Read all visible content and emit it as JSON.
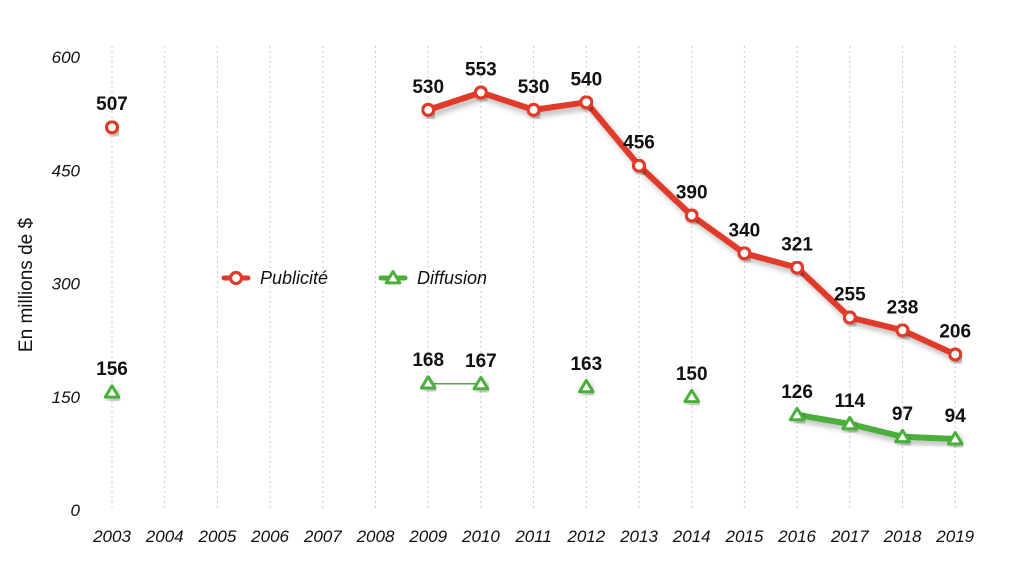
{
  "chart_data": {
    "type": "line",
    "ylabel": "En millions de $",
    "xlabel": "",
    "title": "",
    "ylim": [
      0,
      600
    ],
    "yticks": [
      0,
      150,
      300,
      450,
      600
    ],
    "grid": "vertical dotted",
    "legend_position": "center-left",
    "categories": [
      "2003",
      "2004",
      "2005",
      "2006",
      "2007",
      "2008",
      "2009",
      "2010",
      "2011",
      "2012",
      "2013",
      "2014",
      "2015",
      "2016",
      "2017",
      "2018",
      "2019"
    ],
    "series": [
      {
        "name": "Publicité",
        "color": "#e03a2a",
        "marker": "circle",
        "values": [
          507,
          null,
          null,
          null,
          null,
          null,
          530,
          553,
          530,
          540,
          456,
          390,
          340,
          321,
          255,
          238,
          206
        ]
      },
      {
        "name": "Diffusion",
        "color": "#4caf3a",
        "marker": "triangle",
        "values": [
          156,
          null,
          null,
          null,
          null,
          null,
          168,
          167,
          null,
          163,
          null,
          150,
          null,
          126,
          114,
          97,
          94
        ]
      }
    ]
  }
}
